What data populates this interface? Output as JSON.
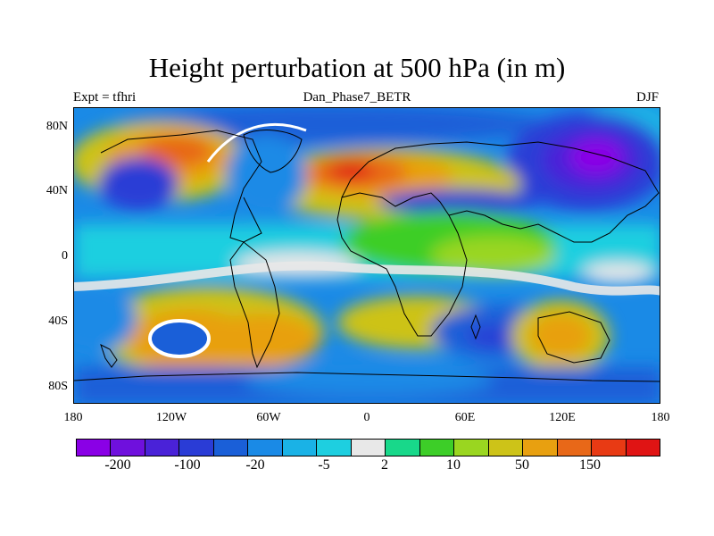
{
  "title": "Height perturbation at 500 hPa (in m)",
  "subtitle_left": "Expt = tfhri",
  "subtitle_center": "Dan_Phase7_BETR",
  "subtitle_right": "DJF",
  "map": {
    "lat_ticks": [
      "80N",
      "40N",
      "0",
      "40S",
      "80S"
    ],
    "lon_ticks": [
      "180",
      "120W",
      "60W",
      "0",
      "60E",
      "120E",
      "180"
    ]
  },
  "colorbar": {
    "colors": [
      "#8a00e6",
      "#6f10dd",
      "#4a22d8",
      "#2a3cd6",
      "#1a5fd8",
      "#1a8ae6",
      "#1ab2e6",
      "#1ecfe0",
      "#e8e8e8",
      "#18d88a",
      "#3dce28",
      "#9ad620",
      "#cdc318",
      "#e8a010",
      "#e86818",
      "#e83a14",
      "#e01414"
    ],
    "labels": [
      "-200",
      "-100",
      "-20",
      "-5",
      "2",
      "10",
      "50",
      "150"
    ]
  }
}
